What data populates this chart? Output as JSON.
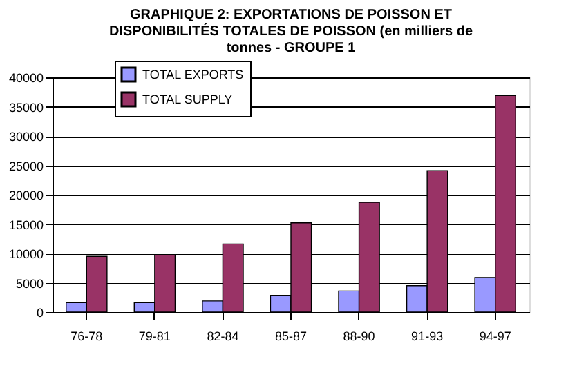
{
  "chart_data": {
    "type": "bar",
    "title": [
      "GRAPHIQUE 2: EXPORTATIONS DE POISSON ET",
      "DISPONIBILITÉS TOTALES DE POISSON (en milliers de",
      "tonnes - GROUPE 1"
    ],
    "categories": [
      "76-78",
      "79-81",
      "82-84",
      "85-87",
      "88-90",
      "91-93",
      "94-97"
    ],
    "series": [
      {
        "name": "TOTAL EXPORTS",
        "color": "#9999ff",
        "values": [
          1600,
          1600,
          1900,
          2800,
          3600,
          4500,
          5900
        ]
      },
      {
        "name": "TOTAL SUPPLY",
        "color": "#993366",
        "values": [
          9500,
          9800,
          11600,
          15200,
          18700,
          24100,
          36900
        ]
      }
    ],
    "ylim": [
      0,
      40000
    ],
    "yticks": [
      0,
      5000,
      10000,
      15000,
      20000,
      25000,
      30000,
      35000,
      40000
    ],
    "grid": "y",
    "legend": "top left"
  }
}
